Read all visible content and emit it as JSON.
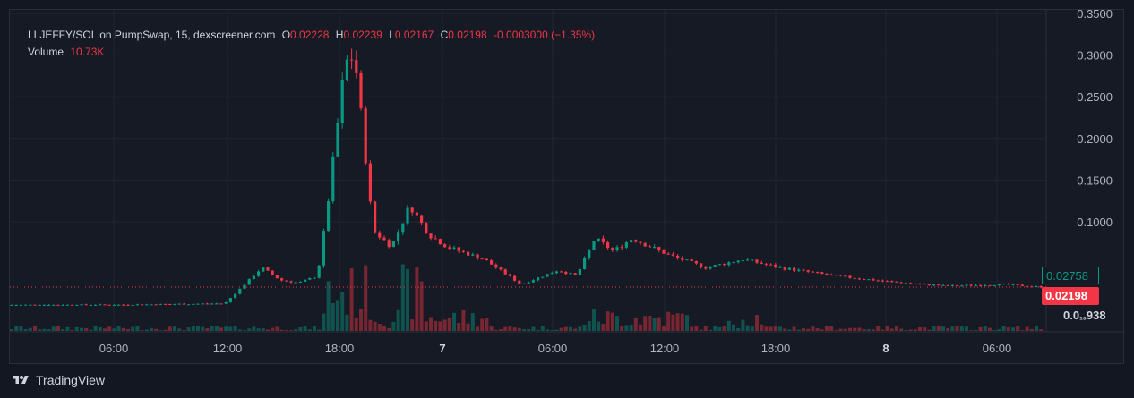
{
  "legend": {
    "symbol": "LLJEFFY/SOL on PumpSwap, 15, dexscreener.com",
    "o_label": "O",
    "o_value": "0.02228",
    "h_label": "H",
    "h_value": "0.02239",
    "l_label": "L",
    "l_value": "0.02167",
    "c_label": "C",
    "c_value": "0.02198",
    "change": "-0.0003000 (−1.35%)",
    "volume_label": "Volume",
    "volume_value": "10.73K"
  },
  "price_tags": {
    "green": "0.02758",
    "red": "0.02198",
    "last_prefix": "0.0",
    "last_sub": "₁₆",
    "last_suffix": "938"
  },
  "footer": {
    "brand": "TradingView"
  },
  "colors": {
    "up": "#089981",
    "down": "#f23645",
    "background": "#161a25",
    "grid": "#232632"
  },
  "chart_data": {
    "type": "candlestick",
    "title": "",
    "y_ticks": [
      "0.3500",
      "0.3000",
      "0.2500",
      "0.2000",
      "0.1500",
      "0.1000"
    ],
    "y_tick_values": [
      0.35,
      0.3,
      0.25,
      0.2,
      0.15,
      0.1
    ],
    "x_ticks": [
      "06:00",
      "12:00",
      "18:00",
      "7",
      "06:00",
      "12:00",
      "18:00",
      "8",
      "06:00"
    ],
    "x_tick_bold": [
      false,
      false,
      false,
      true,
      false,
      false,
      false,
      true,
      false
    ],
    "grid": true,
    "close_series": [
      {
        "t": "Day6 00:00",
        "close": 0.0003
      },
      {
        "t": "Day6 06:00",
        "close": 0.0003
      },
      {
        "t": "Day6 12:00",
        "close": 0.002
      },
      {
        "t": "Day6 14:00",
        "close": 0.045
      },
      {
        "t": "Day6 15:00",
        "close": 0.03
      },
      {
        "t": "Day6 16:00",
        "close": 0.027
      },
      {
        "t": "Day6 17:00",
        "close": 0.035
      },
      {
        "t": "Day6 17:30",
        "close": 0.11
      },
      {
        "t": "Day6 18:00",
        "close": 0.2
      },
      {
        "t": "Day6 18:30",
        "close": 0.29
      },
      {
        "t": "Day6 19:00",
        "close": 0.3
      },
      {
        "t": "Day6 19:30",
        "close": 0.2
      },
      {
        "t": "Day6 20:00",
        "close": 0.09
      },
      {
        "t": "Day6 21:00",
        "close": 0.07
      },
      {
        "t": "Day6 22:00",
        "close": 0.12
      },
      {
        "t": "Day6 23:00",
        "close": 0.085
      },
      {
        "t": "Day7 00:00",
        "close": 0.07
      },
      {
        "t": "Day7 02:00",
        "close": 0.055
      },
      {
        "t": "Day7 04:00",
        "close": 0.025
      },
      {
        "t": "Day7 06:00",
        "close": 0.042
      },
      {
        "t": "Day7 07:00",
        "close": 0.035
      },
      {
        "t": "Day7 08:00",
        "close": 0.08
      },
      {
        "t": "Day7 09:00",
        "close": 0.065
      },
      {
        "t": "Day7 10:00",
        "close": 0.08
      },
      {
        "t": "Day7 12:00",
        "close": 0.06
      },
      {
        "t": "Day7 14:00",
        "close": 0.045
      },
      {
        "t": "Day7 16:00",
        "close": 0.055
      },
      {
        "t": "Day7 18:00",
        "close": 0.045
      },
      {
        "t": "Day7 21:00",
        "close": 0.035
      },
      {
        "t": "Day8 00:00",
        "close": 0.028
      },
      {
        "t": "Day8 03:00",
        "close": 0.023
      },
      {
        "t": "Day8 06:00",
        "close": 0.025
      },
      {
        "t": "Day8 08:00",
        "close": 0.022
      }
    ]
  }
}
